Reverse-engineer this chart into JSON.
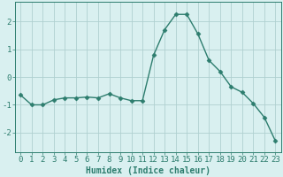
{
  "x": [
    0,
    1,
    2,
    3,
    4,
    5,
    6,
    7,
    8,
    9,
    10,
    11,
    12,
    13,
    14,
    15,
    16,
    17,
    18,
    19,
    20,
    21,
    22,
    23
  ],
  "y": [
    -0.65,
    -1.0,
    -1.0,
    -0.82,
    -0.75,
    -0.75,
    -0.72,
    -0.75,
    -0.6,
    -0.75,
    -0.85,
    -0.85,
    0.78,
    1.7,
    2.25,
    2.25,
    1.55,
    0.6,
    0.2,
    -0.35,
    -0.55,
    -0.95,
    -1.45,
    -2.3
  ],
  "line_color": "#2d7d6e",
  "marker": "D",
  "markersize": 2.5,
  "linewidth": 1.0,
  "bg_color": "#d9f0f0",
  "grid_color": "#b0d0d0",
  "xlabel": "Humidex (Indice chaleur)",
  "xlim": [
    -0.5,
    23.5
  ],
  "ylim": [
    -2.7,
    2.7
  ],
  "yticks": [
    -2,
    -1,
    0,
    1,
    2
  ],
  "xticks": [
    0,
    1,
    2,
    3,
    4,
    5,
    6,
    7,
    8,
    9,
    10,
    11,
    12,
    13,
    14,
    15,
    16,
    17,
    18,
    19,
    20,
    21,
    22,
    23
  ],
  "tick_color": "#2d7d6e",
  "label_color": "#2d7d6e",
  "xlabel_fontsize": 7,
  "tick_fontsize": 6.5
}
